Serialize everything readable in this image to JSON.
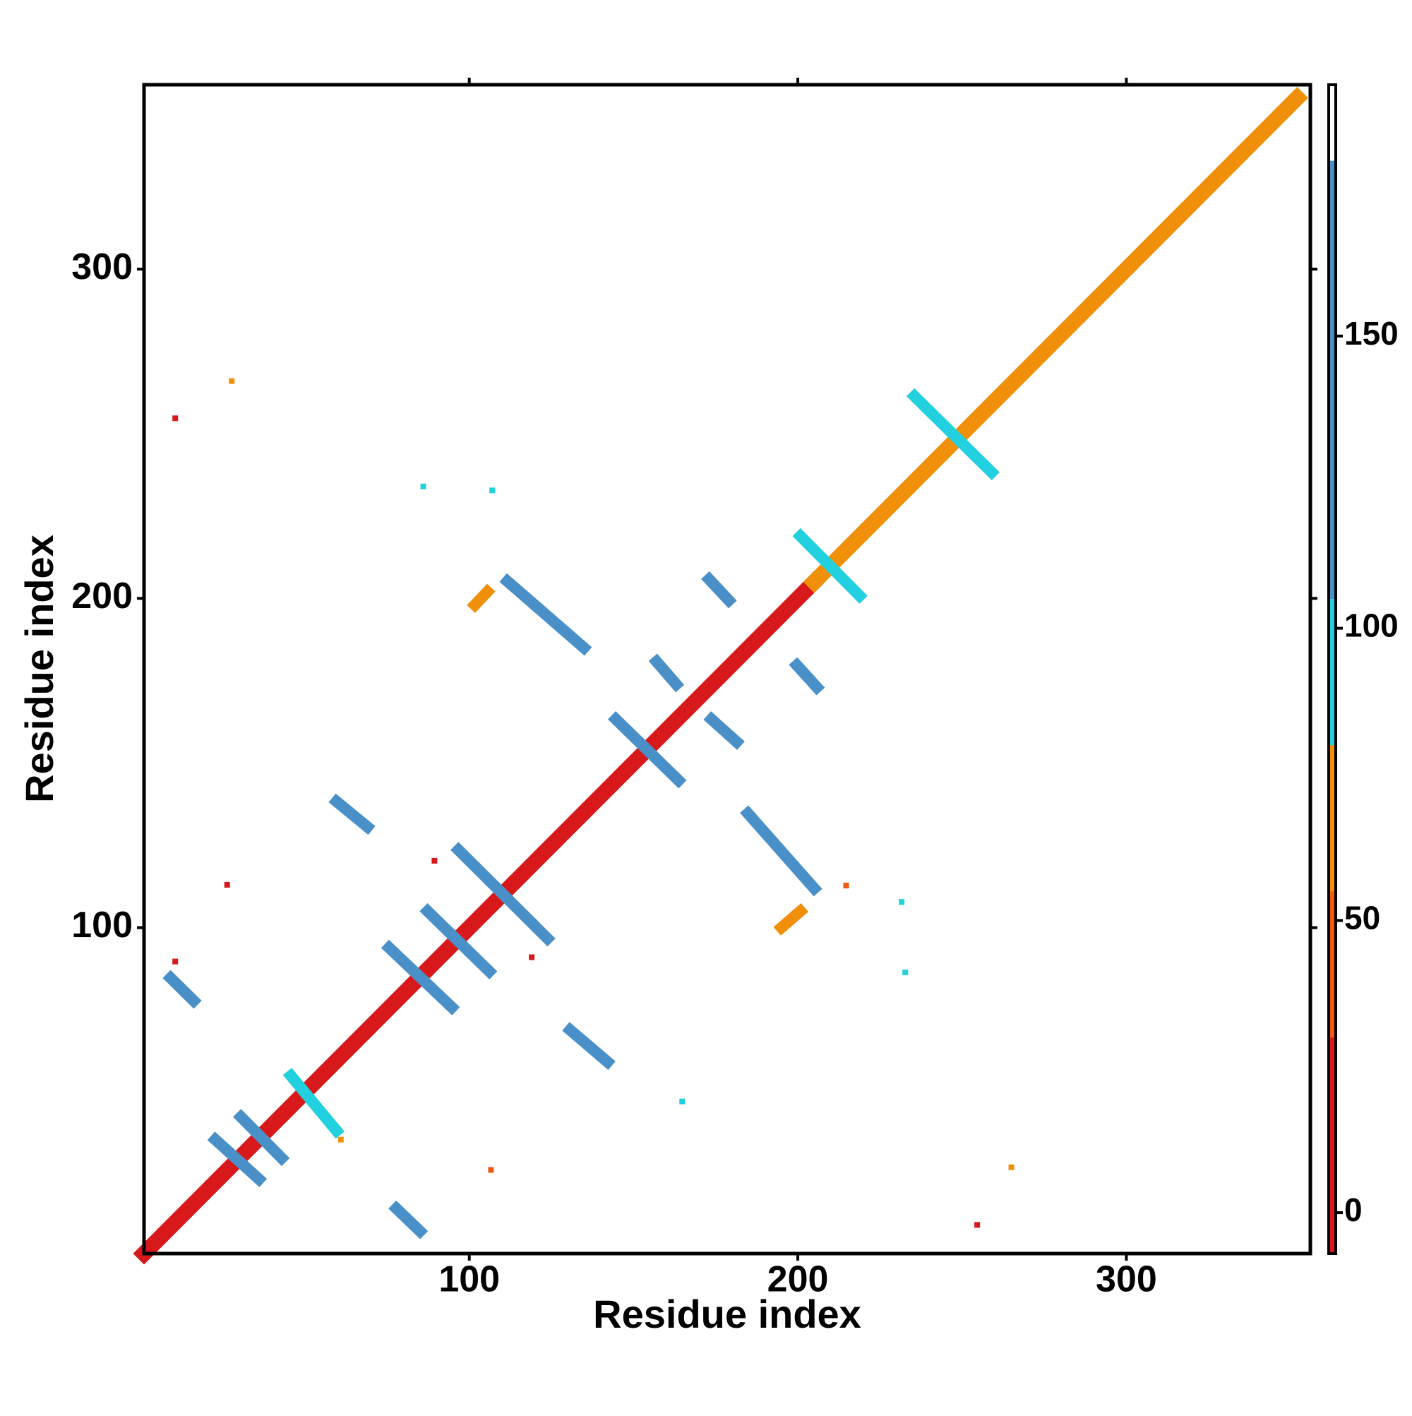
{
  "chart_data": {
    "type": "heatmap",
    "x_label": "Residue index",
    "y_label": "Residue index",
    "xlim": [
      1,
      356
    ],
    "ylim": [
      1,
      356
    ],
    "xticks": [
      100,
      200,
      300
    ],
    "yticks": [
      100,
      200,
      300
    ],
    "colorbar": {
      "lim": [
        -7,
        193
      ],
      "ticks": [
        0,
        50,
        100,
        150
      ],
      "levels": [
        -7,
        30,
        55,
        80,
        105,
        180,
        193
      ],
      "colors": [
        "#d7191c",
        "#f05a14",
        "#f0900a",
        "#22d0e0",
        "#4a90c8",
        "#ffffff"
      ]
    },
    "features": [
      {
        "x0": 1,
        "y0": 1,
        "x1": 205,
        "y1": 205,
        "value": 5
      },
      {
        "x0": 205,
        "y0": 205,
        "x1": 352,
        "y1": 352,
        "value": 60
      },
      {
        "x0": 111.6,
        "y0": 205.2,
        "x1": 134.9,
        "y1": 185,
        "value": 150
      },
      {
        "x0": 173,
        "y0": 205.8,
        "x1": 179,
        "y1": 199.4,
        "value": 150
      },
      {
        "x0": 157,
        "y0": 180.8,
        "x1": 163,
        "y1": 173.9,
        "value": 150
      },
      {
        "x0": 199.7,
        "y0": 179.7,
        "x1": 205.8,
        "y1": 173,
        "value": 150
      },
      {
        "x0": 144.6,
        "y0": 163.3,
        "x1": 163.7,
        "y1": 144.7,
        "value": 150
      },
      {
        "x0": 173.7,
        "y0": 163.3,
        "x1": 181.4,
        "y1": 156.4,
        "value": 150
      },
      {
        "x0": 59.6,
        "y0": 138.3,
        "x1": 69,
        "y1": 130.6,
        "value": 150
      },
      {
        "x0": 184.8,
        "y0": 134.7,
        "x1": 205,
        "y1": 111.9,
        "value": 150
      },
      {
        "x0": 96.7,
        "y0": 123.6,
        "x1": 123.8,
        "y1": 96.7,
        "value": 150
      },
      {
        "x0": 87.3,
        "y0": 105,
        "x1": 106.1,
        "y1": 86.7,
        "value": 150
      },
      {
        "x0": 75.6,
        "y0": 93.9,
        "x1": 94.7,
        "y1": 75.8,
        "value": 150
      },
      {
        "x0": 9.1,
        "y0": 84.7,
        "x1": 16.1,
        "y1": 77.8,
        "value": 150
      },
      {
        "x0": 130.7,
        "y0": 68.9,
        "x1": 142.1,
        "y1": 59.2,
        "value": 150
      },
      {
        "x0": 22.7,
        "y0": 35.6,
        "x1": 36,
        "y1": 23.6,
        "value": 150
      },
      {
        "x0": 30.5,
        "y0": 42.5,
        "x1": 42.9,
        "y1": 30,
        "value": 150
      },
      {
        "x0": 77.8,
        "y0": 14.7,
        "x1": 85,
        "y1": 7.8,
        "value": 150
      },
      {
        "x0": 45.7,
        "y0": 55,
        "x1": 59.6,
        "y1": 38.3,
        "value": 95
      },
      {
        "x0": 235.5,
        "y0": 261.4,
        "x1": 259,
        "y1": 238.3,
        "value": 95
      },
      {
        "x0": 200.8,
        "y0": 218.9,
        "x1": 218.8,
        "y1": 200.8,
        "value": 95
      },
      {
        "x0": 101.7,
        "y0": 198,
        "x1": 105.5,
        "y1": 202,
        "value": 60
      },
      {
        "x0": 195,
        "y0": 100,
        "x1": 200.8,
        "y1": 105,
        "value": 60
      }
    ],
    "points": [
      {
        "x": 27.7,
        "y": 266,
        "value": 60
      },
      {
        "x": 10.5,
        "y": 254.7,
        "value": 10
      },
      {
        "x": 265,
        "y": 27.2,
        "value": 60
      },
      {
        "x": 254.6,
        "y": 9.7,
        "value": 10
      },
      {
        "x": 231.6,
        "y": 107.8,
        "value": 95
      },
      {
        "x": 232.7,
        "y": 86.4,
        "value": 95
      },
      {
        "x": 214.7,
        "y": 112.8,
        "value": 40
      },
      {
        "x": 107,
        "y": 232.8,
        "value": 95
      },
      {
        "x": 86,
        "y": 234,
        "value": 95
      },
      {
        "x": 26.3,
        "y": 113,
        "value": 10
      },
      {
        "x": 10.5,
        "y": 89.7,
        "value": 10
      },
      {
        "x": 106.6,
        "y": 26.4,
        "value": 40
      },
      {
        "x": 60.9,
        "y": 35.6,
        "value": 60
      },
      {
        "x": 164.8,
        "y": 47.2,
        "value": 95
      },
      {
        "x": 119,
        "y": 91,
        "value": 10
      },
      {
        "x": 89.4,
        "y": 120.3,
        "value": 10
      }
    ]
  }
}
